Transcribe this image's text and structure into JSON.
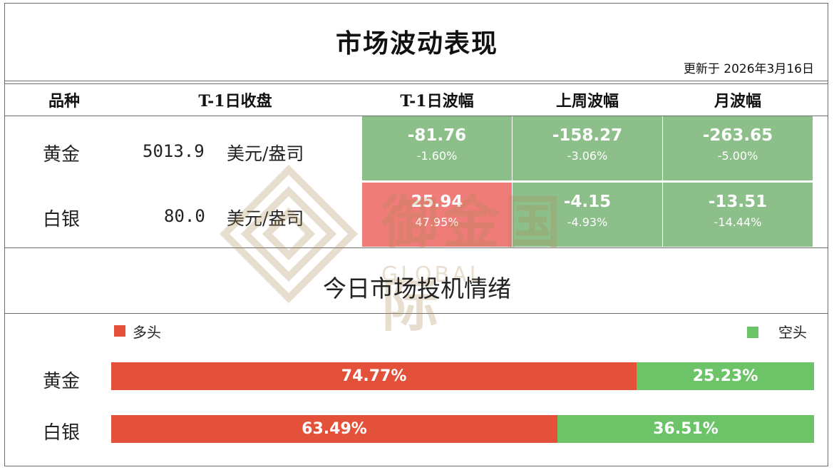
{
  "title": "市场波动表现",
  "updated": "更新于  2026年3月16日",
  "table": {
    "headers": [
      "品种",
      "T-1日收盘",
      "T-1日波幅",
      "上周波幅",
      "月波幅"
    ],
    "rows": [
      {
        "name": "黄金",
        "close": "5013.9",
        "unit": "美元/盎司",
        "t1": {
          "value": "-81.76",
          "pct": "-1.60%"
        },
        "week": {
          "value": "-158.27",
          "pct": "-3.06%"
        },
        "month": {
          "value": "-263.65",
          "pct": "-5.00%"
        }
      },
      {
        "name": "白银",
        "close": "80.0",
        "unit": "美元/盎司",
        "t1": {
          "value": "25.94",
          "pct": "47.95%"
        },
        "week": {
          "value": "-4.15",
          "pct": "-4.93%"
        },
        "month": {
          "value": "-13.51",
          "pct": "-14.44%"
        }
      }
    ]
  },
  "sentiment": {
    "title": "今日市场投机情绪",
    "legend_long": "多头",
    "legend_short": "空头",
    "rows": [
      {
        "name": "黄金",
        "long": 74.77,
        "long_label": "74.77%",
        "short_label": "25.23%"
      },
      {
        "name": "白银",
        "long": 63.49,
        "long_label": "63.49%",
        "short_label": "36.51%"
      }
    ]
  },
  "watermark": {
    "cn": "御金国际",
    "en": "GLOBAL"
  },
  "colors": {
    "down": "#8dbf8a",
    "up": "#ef7c78",
    "long": "#e4513a",
    "short": "#6dc468"
  }
}
